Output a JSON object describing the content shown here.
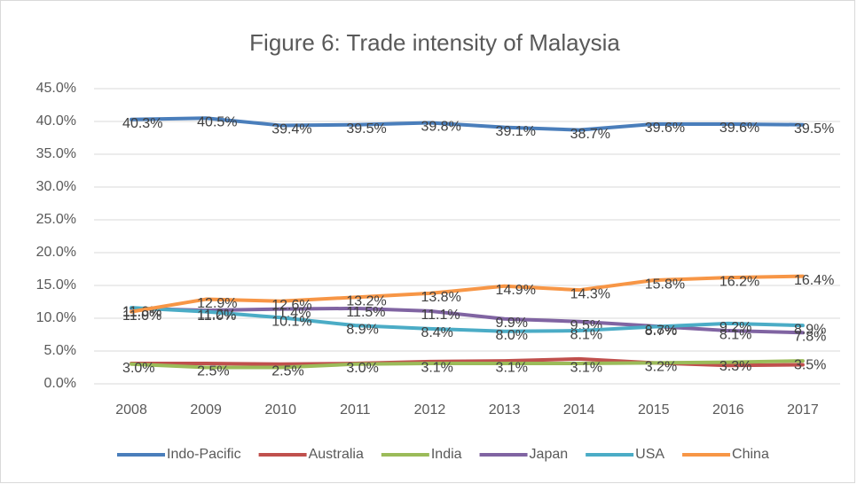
{
  "chart_data": {
    "type": "line",
    "title": "Figure 6: Trade intensity of Malaysia",
    "categories": [
      "2008",
      "2009",
      "2010",
      "2011",
      "2012",
      "2013",
      "2014",
      "2015",
      "2016",
      "2017"
    ],
    "series": [
      {
        "name": "Indo-Pacific",
        "color": "#4a7ebb",
        "values": [
          40.3,
          40.5,
          39.4,
          39.5,
          39.8,
          39.1,
          38.7,
          39.6,
          39.6,
          39.5
        ],
        "value_labels": [
          "40.3%",
          "40.5%",
          "39.4%",
          "39.5%",
          "39.8%",
          "39.1%",
          "38.7%",
          "39.6%",
          "39.6%",
          "39.5%"
        ]
      },
      {
        "name": "Australia",
        "color": "#c0504d",
        "values": [
          3.1,
          3.1,
          3.0,
          3.1,
          3.4,
          3.5,
          3.8,
          3.2,
          2.8,
          2.9
        ]
      },
      {
        "name": "India",
        "color": "#9bbb59",
        "values": [
          3.0,
          2.5,
          2.5,
          3.0,
          3.1,
          3.1,
          3.1,
          3.2,
          3.3,
          3.5
        ],
        "value_labels": [
          "3.0%",
          "2.5%",
          "2.5%",
          "3.0%",
          "3.1%",
          "3.1%",
          "3.1%",
          "3.2%",
          "3.3%",
          "3.5%"
        ]
      },
      {
        "name": "Japan",
        "color": "#8064a2",
        "values": [
          11.5,
          11.2,
          11.4,
          11.5,
          11.1,
          9.9,
          9.5,
          8.8,
          8.1,
          7.8
        ],
        "value_labels": [
          "11.5%",
          "11.2%",
          "11.4%",
          "11.5%",
          "11.1%",
          "9.9%",
          "9.5%",
          "8.8%",
          "8.1%",
          "7.8%"
        ]
      },
      {
        "name": "USA",
        "color": "#4bacc6",
        "values": [
          11.6,
          11.0,
          10.1,
          8.9,
          8.4,
          8.0,
          8.1,
          8.7,
          9.2,
          8.9
        ],
        "value_labels": [
          "11.6%",
          "11.0%",
          "10.1%",
          "8.9%",
          "8.4%",
          "8.0%",
          "8.1%",
          "8.7%",
          "9.2%",
          "8.9%"
        ]
      },
      {
        "name": "China",
        "color": "#f79646",
        "values": [
          11.0,
          12.9,
          12.6,
          13.2,
          13.8,
          14.9,
          14.3,
          15.8,
          16.2,
          16.4
        ],
        "value_labels": [
          "11.0%",
          "12.9%",
          "12.6%",
          "13.2%",
          "13.8%",
          "14.9%",
          "14.3%",
          "15.8%",
          "16.2%",
          "16.4%"
        ]
      }
    ],
    "ylim": [
      0,
      45
    ],
    "yticks": [
      {
        "value": 0,
        "label": "0.0%"
      },
      {
        "value": 5,
        "label": "5.0%"
      },
      {
        "value": 10,
        "label": "10.0%"
      },
      {
        "value": 15,
        "label": "15.0%"
      },
      {
        "value": 20,
        "label": "20.0%"
      },
      {
        "value": 25,
        "label": "25.0%"
      },
      {
        "value": 30,
        "label": "30.0%"
      },
      {
        "value": 35,
        "label": "35.0%"
      },
      {
        "value": 40,
        "label": "40.0%"
      },
      {
        "value": 45,
        "label": "45.0%"
      }
    ],
    "grid": true,
    "legend": "bottom"
  }
}
